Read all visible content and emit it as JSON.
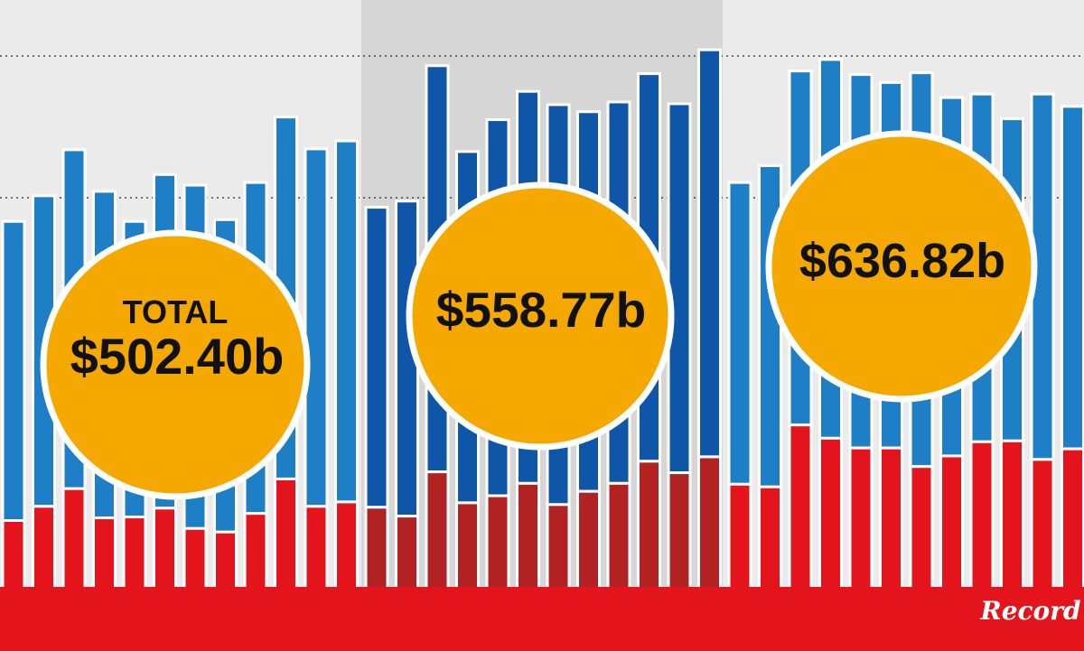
{
  "chart_data": {
    "type": "bar",
    "stacked": true,
    "grid": "dotted horizontal",
    "series": [
      {
        "values": [
          75,
          91,
          111,
          78,
          79,
          89,
          66,
          62,
          83,
          122,
          91,
          96,
          90,
          80,
          130,
          95,
          103,
          117,
          93,
          108,
          117,
          142,
          129,
          147,
          116,
          113,
          183,
          168,
          157,
          157,
          136,
          148,
          164,
          165,
          144,
          156
        ]
      },
      {
        "values": [
          338,
          351,
          383,
          369,
          334,
          377,
          388,
          353,
          374,
          409,
          404,
          408,
          339,
          356,
          459,
          397,
          425,
          443,
          452,
          429,
          431,
          438,
          417,
          460,
          341,
          363,
          400,
          428,
          422,
          413,
          445,
          405,
          393,
          364,
          413,
          387
        ]
      }
    ],
    "groups": [
      {
        "label_top": "",
        "total": "$502.40b"
      },
      {
        "label_top": "",
        "total": "$558.77b"
      },
      {
        "label_top": "",
        "total": "$636.82b"
      }
    ]
  },
  "badges": {
    "first_top": "TOTAL",
    "first_total": "$502.40b",
    "second_total": "$558.77b",
    "third_total": "$636.82b"
  },
  "brand": {
    "logo_text": "Record"
  },
  "colors": {
    "blue_light": "#1e7fc6",
    "blue_dark": "#0f56a8",
    "red_bright": "#e3141b",
    "red_dark": "#b22222",
    "badge_fill": "#f5a800",
    "panel_light": "#ebebeb",
    "panel_dark": "#d6d6d6"
  }
}
